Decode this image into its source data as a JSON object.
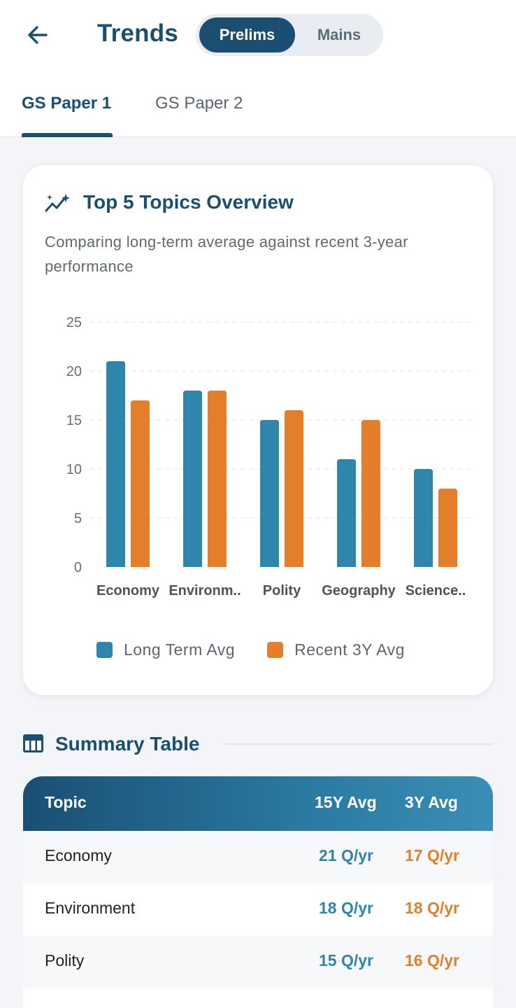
{
  "header": {
    "title": "Trends",
    "segments": [
      {
        "label": "Prelims",
        "active": true
      },
      {
        "label": "Mains",
        "active": false
      }
    ],
    "tabs": [
      {
        "label": "GS Paper 1",
        "active": true
      },
      {
        "label": "GS Paper 2",
        "active": false
      }
    ]
  },
  "overview": {
    "title": "Top 5 Topics Overview",
    "subtitle": "Comparing long-term average against recent 3-year performance"
  },
  "chart_data": {
    "type": "bar",
    "categories": [
      "Economy",
      "Environm..",
      "Polity",
      "Geography",
      "Science.."
    ],
    "series": [
      {
        "name": "Long Term Avg",
        "color": "#2f86ad",
        "values": [
          21,
          18,
          15,
          11,
          10
        ]
      },
      {
        "name": "Recent 3Y Avg",
        "color": "#e57e2b",
        "values": [
          17,
          18,
          16,
          15,
          8
        ]
      }
    ],
    "yticks": [
      0,
      5,
      10,
      15,
      20,
      25
    ],
    "ylim": [
      0,
      25
    ],
    "grid": true,
    "legend_position": "bottom"
  },
  "summary": {
    "title": "Summary Table",
    "columns": [
      "Topic",
      "15Y Avg",
      "3Y Avg"
    ],
    "rows": [
      {
        "topic": "Economy",
        "avg15": "21 Q/yr",
        "avg3": "17 Q/yr"
      },
      {
        "topic": "Environment",
        "avg15": "18 Q/yr",
        "avg3": "18 Q/yr"
      },
      {
        "topic": "Polity",
        "avg15": "15 Q/yr",
        "avg3": "16 Q/yr"
      }
    ]
  },
  "colors": {
    "primary": "#1b4f72",
    "long_term": "#2f86ad",
    "recent": "#e57e2b"
  }
}
